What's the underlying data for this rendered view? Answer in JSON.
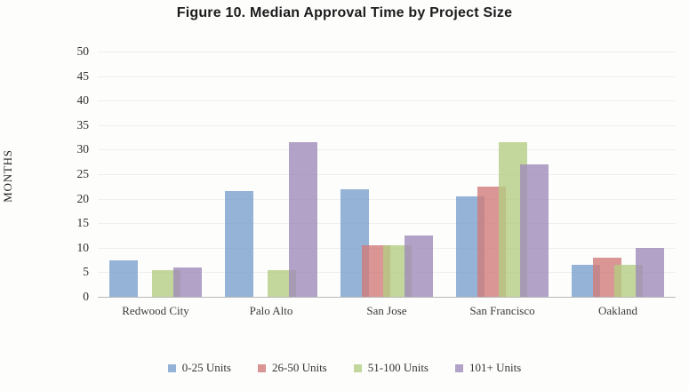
{
  "title": "Figure 10. Median Approval Time by Project Size",
  "y_axis": {
    "label": "MONTHS"
  },
  "chart_data": {
    "type": "bar",
    "title": "Figure 10. Median Approval Time by Project Size",
    "xlabel": "",
    "ylabel": "MONTHS",
    "ylim": [
      0,
      50
    ],
    "ytick_step": 5,
    "grid": true,
    "legend_position": "bottom",
    "categories": [
      "Redwood City",
      "Palo Alto",
      "San Jose",
      "San Francisco",
      "Oakland"
    ],
    "series": [
      {
        "name": "0-25 Units",
        "color": "#95B3D7",
        "values": [
          7.5,
          21.5,
          22,
          20.5,
          6.5
        ]
      },
      {
        "name": "26-50 Units",
        "color": "#D99694",
        "values": [
          null,
          null,
          10.5,
          22.5,
          8
        ]
      },
      {
        "name": "51-100 Units",
        "color": "#C3D69B",
        "values": [
          5.5,
          5.5,
          10.5,
          31.5,
          6.5
        ]
      },
      {
        "name": "101+ Units",
        "color": "#B3A2C7",
        "values": [
          6,
          31.5,
          12.5,
          27,
          10
        ]
      }
    ]
  }
}
